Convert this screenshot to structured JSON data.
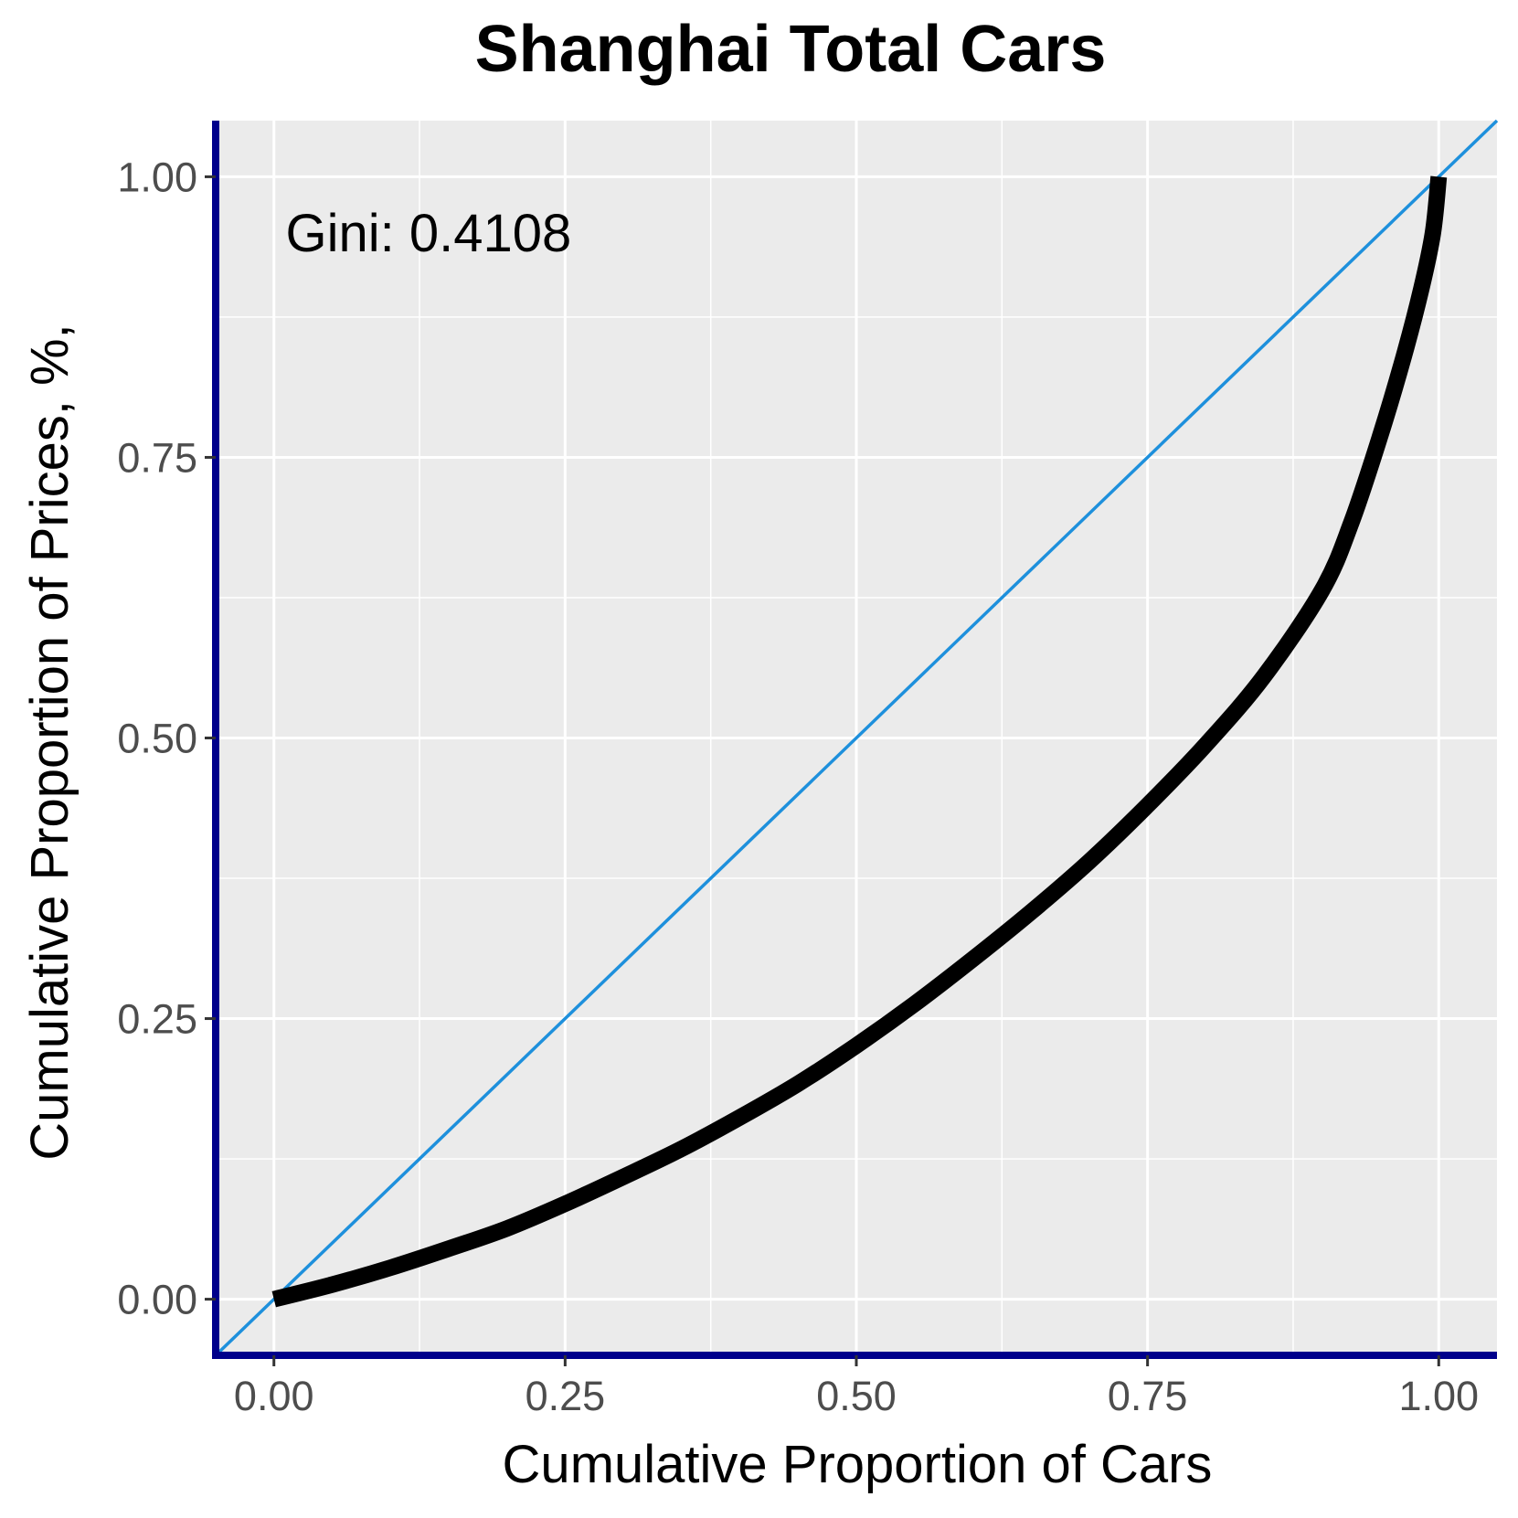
{
  "chart_data": {
    "type": "line",
    "title": "Shanghai Total Cars",
    "xlabel": "Cumulative Proportion of Cars",
    "ylabel": "Cumulative Proportion of Prices, %,",
    "xlim": [
      -0.05,
      1.05
    ],
    "ylim": [
      -0.05,
      1.05
    ],
    "x_ticks": [
      0.0,
      0.25,
      0.5,
      0.75,
      1.0
    ],
    "x_tick_labels": [
      "0.00",
      "0.25",
      "0.50",
      "0.75",
      "1.00"
    ],
    "y_ticks": [
      0.0,
      0.25,
      0.5,
      0.75,
      1.0
    ],
    "y_tick_labels": [
      "0.00",
      "0.25",
      "0.50",
      "0.75",
      "1.00"
    ],
    "grid": true,
    "annotation": {
      "text": "Gini: 0.4108",
      "x": 0.01,
      "y": 0.95
    },
    "series": [
      {
        "kind": "lorenz-curve",
        "color": "#000000",
        "x": [
          0.0,
          0.05,
          0.1,
          0.15,
          0.2,
          0.25,
          0.3,
          0.35,
          0.4,
          0.45,
          0.5,
          0.55,
          0.6,
          0.65,
          0.7,
          0.75,
          0.8,
          0.85,
          0.9,
          0.925,
          0.95,
          0.97,
          0.985,
          0.995,
          1.0
        ],
        "y": [
          0.0,
          0.013,
          0.028,
          0.045,
          0.063,
          0.085,
          0.109,
          0.134,
          0.162,
          0.192,
          0.226,
          0.263,
          0.303,
          0.345,
          0.39,
          0.44,
          0.494,
          0.555,
          0.632,
          0.692,
          0.77,
          0.84,
          0.9,
          0.95,
          1.0
        ]
      },
      {
        "kind": "equality-line",
        "color": "#1e90dc",
        "x": [
          -0.05,
          1.05
        ],
        "y": [
          -0.05,
          1.05
        ]
      }
    ],
    "colors": {
      "panel_background": "#ebebeb",
      "grid": "#ffffff",
      "axis_lines": "#00008b",
      "curve": "#000000",
      "equality_line": "#1e90dc"
    }
  }
}
